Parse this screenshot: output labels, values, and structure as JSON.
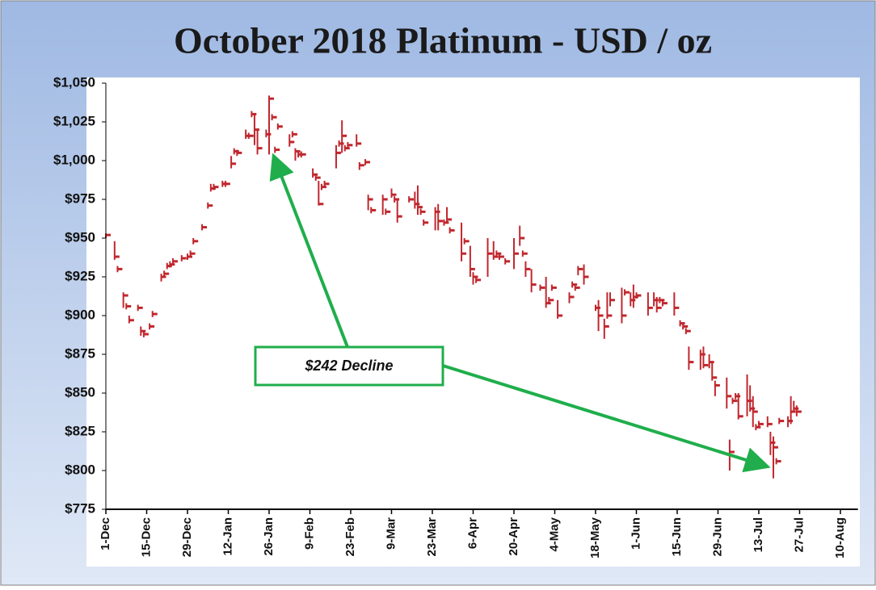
{
  "chart_data": {
    "type": "hlc",
    "title": "October 2018 Platinum - USD / oz",
    "annotation": "$242 Decline",
    "color": "#c0272d",
    "xlim": [
      0,
      258
    ],
    "ylim": [
      775,
      1050
    ],
    "xticks": [
      {
        "value": 0,
        "label": "1-Dec"
      },
      {
        "value": 14,
        "label": "15-Dec"
      },
      {
        "value": 28,
        "label": "29-Dec"
      },
      {
        "value": 42,
        "label": "12-Jan"
      },
      {
        "value": 56,
        "label": "26-Jan"
      },
      {
        "value": 70,
        "label": "9-Feb"
      },
      {
        "value": 84,
        "label": "23-Feb"
      },
      {
        "value": 98,
        "label": "9-Mar"
      },
      {
        "value": 112,
        "label": "23-Mar"
      },
      {
        "value": 126,
        "label": "6-Apr"
      },
      {
        "value": 140,
        "label": "20-Apr"
      },
      {
        "value": 154,
        "label": "4-May"
      },
      {
        "value": 168,
        "label": "18-May"
      },
      {
        "value": 182,
        "label": "1-Jun"
      },
      {
        "value": 196,
        "label": "15-Jun"
      },
      {
        "value": 210,
        "label": "29-Jun"
      },
      {
        "value": 224,
        "label": "13-Jul"
      },
      {
        "value": 238,
        "label": "27-Jul"
      },
      {
        "value": 252,
        "label": "10-Aug"
      }
    ],
    "yticks": [
      {
        "value": 775,
        "label": "$775"
      },
      {
        "value": 800,
        "label": "$800"
      },
      {
        "value": 825,
        "label": "$825"
      },
      {
        "value": 850,
        "label": "$850"
      },
      {
        "value": 875,
        "label": "$875"
      },
      {
        "value": 900,
        "label": "$900"
      },
      {
        "value": 925,
        "label": "$925"
      },
      {
        "value": 950,
        "label": "$950"
      },
      {
        "value": 975,
        "label": "$975"
      },
      {
        "value": 1000,
        "label": "$1,000"
      },
      {
        "value": 1025,
        "label": "$1,025"
      },
      {
        "value": 1050,
        "label": "$1,050"
      }
    ],
    "x": [
      0,
      3,
      4,
      6,
      7,
      8,
      11,
      12,
      13,
      15,
      16,
      19,
      20,
      21,
      22,
      23,
      26,
      28,
      29,
      30,
      33,
      35,
      36,
      37,
      40,
      41,
      43,
      44,
      45,
      48,
      49,
      50,
      51,
      52,
      55,
      56,
      57,
      58,
      59,
      63,
      64,
      65,
      66,
      67,
      71,
      72,
      73,
      74,
      75,
      79,
      80,
      81,
      82,
      83,
      86,
      87,
      89,
      90,
      91,
      95,
      96,
      98,
      99,
      100,
      104,
      106,
      107,
      108,
      109,
      113,
      114,
      116,
      117,
      118,
      122,
      123,
      125,
      126,
      127,
      131,
      133,
      134,
      135,
      137,
      140,
      142,
      143,
      144,
      146,
      149,
      151,
      152,
      153,
      155,
      159,
      160,
      161,
      162,
      164,
      168,
      169,
      171,
      172,
      173,
      177,
      178,
      180,
      181,
      182,
      186,
      188,
      189,
      190,
      191,
      195,
      197,
      198,
      199,
      200,
      204,
      205,
      207,
      208,
      209,
      213,
      214,
      215,
      216,
      217,
      220,
      221,
      222,
      223,
      224,
      227,
      228,
      229,
      230,
      231,
      234,
      235,
      236,
      237
    ],
    "high": [
      953,
      948,
      932,
      915,
      908,
      900,
      907,
      893,
      890,
      895,
      903,
      927,
      929,
      934,
      935,
      937,
      939,
      940,
      942,
      950,
      959,
      973,
      985,
      985,
      987,
      987,
      1003,
      1008,
      1007,
      1020,
      1018,
      1032,
      1030,
      1020,
      1020,
      1042,
      1030,
      1009,
      1024,
      1017,
      1019,
      1008,
      1006,
      1006,
      995,
      991,
      987,
      985,
      987,
      1010,
      1013,
      1026,
      1010,
      1012,
      1017,
      999,
      1001,
      978,
      970,
      978,
      969,
      982,
      977,
      975,
      977,
      980,
      984,
      969,
      962,
      970,
      972,
      962,
      970,
      957,
      960,
      950,
      945,
      928,
      925,
      950,
      948,
      942,
      940,
      937,
      950,
      958,
      942,
      935,
      930,
      920,
      925,
      912,
      920,
      910,
      915,
      922,
      920,
      932,
      933,
      907,
      910,
      898,
      915,
      915,
      918,
      917,
      915,
      920,
      915,
      915,
      915,
      912,
      912,
      910,
      915,
      897,
      895,
      892,
      880,
      878,
      880,
      875,
      870,
      858,
      860,
      820,
      847,
      850,
      850,
      862,
      855,
      848,
      830,
      832,
      835,
      825,
      822,
      808,
      834,
      835,
      848,
      845,
      842
    ],
    "low": [
      950,
      936,
      928,
      905,
      904,
      895,
      903,
      887,
      886,
      891,
      899,
      922,
      925,
      930,
      931,
      933,
      935,
      936,
      938,
      946,
      955,
      969,
      980,
      981,
      983,
      983,
      995,
      1004,
      1003,
      1014,
      1014,
      1028,
      1010,
      1004,
      1015,
      1004,
      1026,
      1005,
      1020,
      1009,
      1015,
      1000,
      1002,
      1002,
      989,
      987,
      971,
      981,
      983,
      995,
      1009,
      1005,
      1006,
      1008,
      1009,
      994,
      997,
      968,
      966,
      965,
      965,
      976,
      973,
      960,
      973,
      969,
      965,
      965,
      958,
      955,
      955,
      958,
      960,
      953,
      935,
      946,
      925,
      920,
      921,
      925,
      936,
      938,
      936,
      933,
      930,
      945,
      938,
      925,
      915,
      916,
      905,
      908,
      916,
      898,
      908,
      918,
      916,
      926,
      920,
      903,
      890,
      885,
      898,
      906,
      895,
      913,
      906,
      905,
      911,
      900,
      906,
      902,
      908,
      906,
      900,
      893,
      891,
      888,
      865,
      865,
      866,
      866,
      858,
      848,
      840,
      800,
      843,
      846,
      833,
      835,
      838,
      828,
      826,
      828,
      828,
      810,
      795,
      804,
      830,
      828,
      830,
      838,
      835
    ],
    "close": [
      952,
      938,
      930,
      913,
      906,
      897,
      905,
      890,
      888,
      893,
      901,
      925,
      927,
      932,
      933,
      935,
      937,
      938,
      940,
      948,
      957,
      971,
      982,
      983,
      985,
      985,
      998,
      1006,
      1005,
      1016,
      1016,
      1030,
      1020,
      1008,
      1017,
      1040,
      1028,
      1007,
      1022,
      1012,
      1017,
      1006,
      1004,
      1004,
      991,
      989,
      972,
      983,
      985,
      1005,
      1011,
      1016,
      1008,
      1010,
      1011,
      997,
      999,
      975,
      968,
      975,
      967,
      978,
      975,
      964,
      975,
      972,
      970,
      967,
      960,
      967,
      961,
      960,
      962,
      955,
      940,
      948,
      930,
      925,
      923,
      940,
      938,
      940,
      938,
      935,
      940,
      950,
      940,
      930,
      920,
      918,
      908,
      910,
      918,
      900,
      912,
      920,
      918,
      930,
      925,
      905,
      900,
      893,
      900,
      910,
      900,
      915,
      910,
      912,
      913,
      905,
      910,
      905,
      910,
      908,
      905,
      895,
      893,
      890,
      870,
      875,
      868,
      870,
      860,
      855,
      848,
      812,
      845,
      848,
      835,
      845,
      840,
      838,
      828,
      830,
      830,
      818,
      815,
      806,
      832,
      832,
      838,
      840,
      838
    ]
  }
}
